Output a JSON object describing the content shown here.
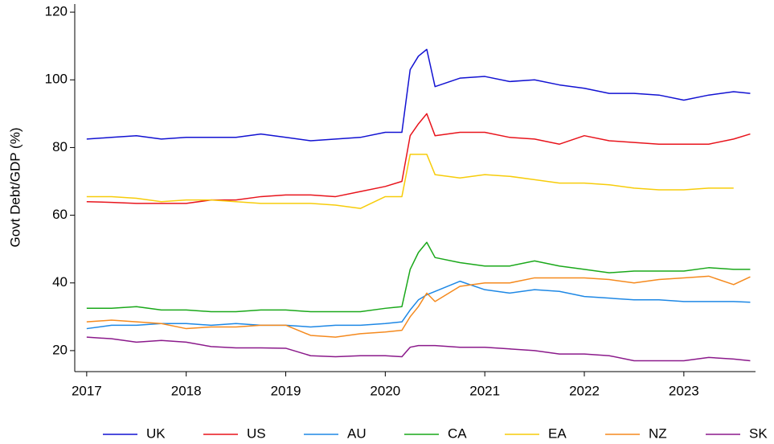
{
  "chart_data": {
    "type": "line",
    "y_label": "Govt Debt/GDP (%)",
    "x": [
      2017,
      2017.25,
      2017.5,
      2017.75,
      2018,
      2018.25,
      2018.5,
      2018.75,
      2019,
      2019.25,
      2019.5,
      2019.75,
      2020,
      2020.167,
      2020.25,
      2020.333,
      2020.417,
      2020.5,
      2020.75,
      2021,
      2021.25,
      2021.5,
      2021.75,
      2022,
      2022.25,
      2022.5,
      2022.75,
      2023,
      2023.25,
      2023.5,
      2023.667
    ],
    "series": [
      {
        "name": "UK",
        "color": "#1212d2",
        "values": [
          82.5,
          83,
          83.5,
          82.5,
          83,
          83,
          83,
          84,
          83,
          82,
          82.5,
          83,
          84.5,
          84.5,
          103,
          107,
          109,
          98,
          100.5,
          101,
          99.5,
          100,
          98.5,
          97.5,
          96,
          96,
          95.5,
          94,
          95.5,
          96.5,
          96
        ]
      },
      {
        "name": "US",
        "color": "#e8141c",
        "values": [
          64,
          63.8,
          63.5,
          63.5,
          63.5,
          64.5,
          64.5,
          65.5,
          66,
          66,
          65.5,
          67,
          68.5,
          70,
          83.5,
          87,
          90,
          83.5,
          84.5,
          84.5,
          83,
          82.5,
          81,
          83.5,
          82,
          81.5,
          81,
          81,
          81,
          82.5,
          84
        ]
      },
      {
        "name": "AU",
        "color": "#1e88e5",
        "values": [
          26.5,
          27.5,
          27.5,
          28,
          28,
          27.5,
          28,
          27.5,
          27.5,
          27,
          27.5,
          27.5,
          28,
          28.5,
          32,
          35,
          36.5,
          37.5,
          40.5,
          38,
          37,
          38,
          37.5,
          36,
          35.5,
          35,
          35,
          34.5,
          34.5,
          34.5,
          34.3
        ]
      },
      {
        "name": "CA",
        "color": "#1aa81a",
        "values": [
          32.5,
          32.5,
          33,
          32,
          32,
          31.5,
          31.5,
          32,
          32,
          31.5,
          31.5,
          31.5,
          32.5,
          33,
          44,
          49,
          52,
          47.5,
          46,
          45,
          45,
          46.5,
          45,
          44,
          43,
          43.5,
          43.5,
          43.5,
          44.5,
          44,
          44
        ]
      },
      {
        "name": "EA",
        "color": "#f7cc0a",
        "values": [
          65.5,
          65.5,
          65,
          64,
          64.5,
          64.5,
          64,
          63.5,
          63.5,
          63.5,
          63,
          62,
          65.5,
          65.5,
          78,
          78,
          78,
          72,
          71,
          72,
          71.5,
          70.5,
          69.5,
          69.5,
          69,
          68,
          67.5,
          67.5,
          68,
          68,
          null
        ]
      },
      {
        "name": "NZ",
        "color": "#f58a1e",
        "values": [
          28.5,
          29,
          28.5,
          28,
          26.5,
          27,
          27,
          27.5,
          27.5,
          24.5,
          24,
          25,
          25.5,
          26,
          30,
          33,
          37,
          34.5,
          39,
          40,
          40,
          41.5,
          41.5,
          41.5,
          41,
          40,
          41,
          41.5,
          42,
          39.5,
          41.8
        ]
      },
      {
        "name": "SK",
        "color": "#8b1a8b",
        "values": [
          24,
          23.5,
          22.5,
          23,
          22.5,
          21.2,
          20.8,
          20.8,
          20.7,
          18.5,
          18.2,
          18.5,
          18.5,
          18.2,
          21,
          21.5,
          21.5,
          21.5,
          21,
          21,
          20.5,
          20,
          19,
          19,
          18.5,
          17,
          17,
          17,
          18,
          17.5,
          17
        ]
      }
    ],
    "xlim": [
      2016.88,
      2023.72
    ],
    "xticks": [
      2017,
      2018,
      2019,
      2020,
      2021,
      2022,
      2023
    ],
    "ylim": [
      13.8,
      122.4
    ],
    "yticks": [
      20,
      40,
      60,
      80,
      100,
      120
    ],
    "grid": false,
    "legend": "bottom"
  }
}
